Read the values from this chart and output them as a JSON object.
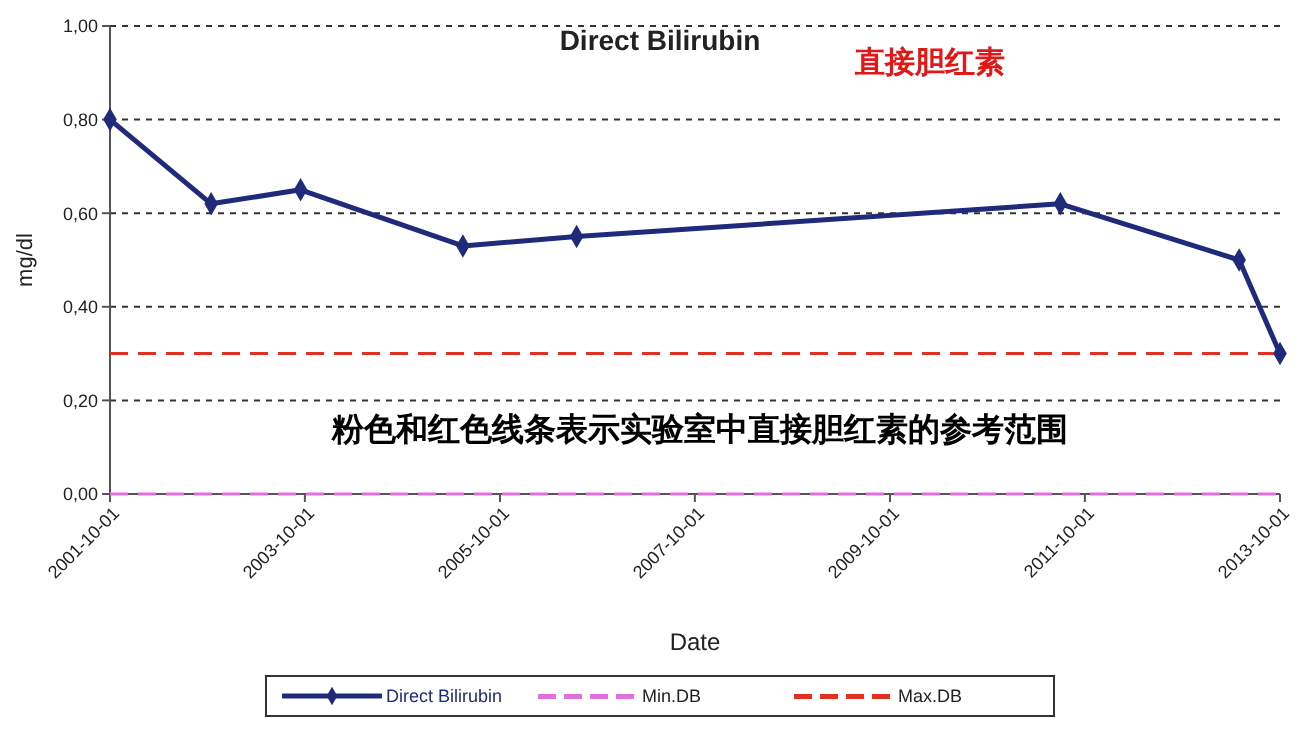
{
  "chart_data": {
    "type": "line",
    "title": "Direct Bilirubin",
    "xlabel": "Date",
    "ylabel": "mg/dl",
    "annotations": [
      "直接胆红素",
      "粉色和红色线条表示实验室中直接胆红素的参考范围"
    ],
    "x": [
      "2001-10-01",
      "2002-10-15",
      "2003-09-15",
      "2005-05-15",
      "2006-07-15",
      "2011-07-01",
      "2013-05-01",
      "2013-10-01"
    ],
    "series": [
      {
        "name": "Direct Bilirubin",
        "color": "#1f2a7a",
        "values": [
          0.8,
          0.62,
          0.65,
          0.53,
          0.55,
          0.62,
          0.5,
          0.3
        ]
      }
    ],
    "xlim": [
      "2001-10-01",
      "2013-10-01"
    ],
    "xticks": [
      "2001-10-01",
      "2003-10-01",
      "2005-10-01",
      "2007-10-01",
      "2009-10-01",
      "2011-10-01",
      "2013-10-01"
    ],
    "ylim": [
      0,
      1
    ],
    "yticks": [
      {
        "value": 0,
        "label": "0,00"
      },
      {
        "value": 0.2,
        "label": "0,20"
      },
      {
        "value": 0.4,
        "label": "0,40"
      },
      {
        "value": 0.6,
        "label": "0,60"
      },
      {
        "value": 0.8,
        "label": "0,80"
      },
      {
        "value": 1,
        "label": "1,00"
      }
    ],
    "ref_lines": [
      {
        "axis": "y",
        "value": 0,
        "label": "Min.DB",
        "color": "#e070e0",
        "line_style": "dashed"
      },
      {
        "axis": "y",
        "value": 0.3,
        "label": "Max.DB",
        "color": "#e03020",
        "line_style": "dashed"
      }
    ],
    "grid": "y",
    "legend": "bottom",
    "marker": "diamond",
    "line_style": "solid"
  }
}
